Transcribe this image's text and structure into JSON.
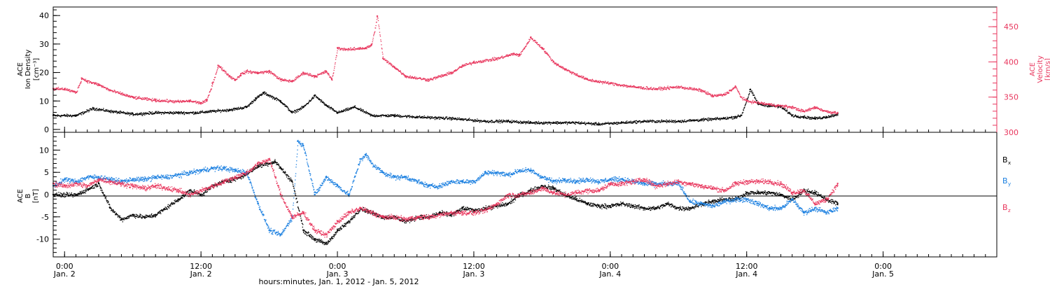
{
  "figure": {
    "xlabel": "hours:minutes, Jan.  1, 2012 - Jan.  5, 2012",
    "x_ticks": [
      {
        "time": "0:00",
        "date": "Jan. 2",
        "hour": 24
      },
      {
        "time": "12:00",
        "date": "Jan. 2",
        "hour": 36
      },
      {
        "time": "0:00",
        "date": "Jan. 3",
        "hour": 48
      },
      {
        "time": "12:00",
        "date": "Jan. 3",
        "hour": 60
      },
      {
        "time": "0:00",
        "date": "Jan. 4",
        "hour": 72
      },
      {
        "time": "12:00",
        "date": "Jan. 4",
        "hour": 84
      },
      {
        "time": "0:00",
        "date": "Jan. 5",
        "hour": 96
      }
    ],
    "xlim_hours": [
      23.0,
      106.0
    ]
  },
  "panel1": {
    "left_label": [
      "ACE",
      "Ion Density",
      "[cm⁻³]"
    ],
    "right_label": [
      "ACE",
      "Velocity",
      "[km/s]"
    ],
    "left_color": "#000000",
    "right_color": "#e8365d",
    "left_ticks": [
      "0",
      "10",
      "20",
      "30",
      "40"
    ],
    "right_ticks": [
      "300",
      "350",
      "400",
      "450"
    ]
  },
  "panel2": {
    "left_label": [
      "ACE",
      "B",
      "[nT]"
    ],
    "left_ticks": [
      "-10",
      "-5",
      "0",
      "5",
      "10"
    ],
    "legend": [
      {
        "label": "B",
        "sub": "x",
        "color": "#000000"
      },
      {
        "label": "B",
        "sub": "y",
        "color": "#1a7fe0"
      },
      {
        "label": "B",
        "sub": "z",
        "color": "#e8365d"
      }
    ]
  },
  "chart_data": [
    {
      "type": "scatter",
      "title": "",
      "xlabel": "",
      "ylabel": "ACE Ion Density [cm⁻³]",
      "y2label": "ACE Velocity [km/s]",
      "xlim": [
        23.0,
        106.0
      ],
      "ylim": [
        -1,
        43
      ],
      "y2lim": [
        300,
        478
      ],
      "series": [
        {
          "name": "Ion Density",
          "axis": "left",
          "color": "#000000",
          "x": [
            23.0,
            25.0,
            26.5,
            28.0,
            30.0,
            32.0,
            34.0,
            35.5,
            37.0,
            38.5,
            40.0,
            40.8,
            41.5,
            43.0,
            44.0,
            45.0,
            46.0,
            47.0,
            48.0,
            49.5,
            51.0,
            53.0,
            55.0,
            58.0,
            61.0,
            63.0,
            65.0,
            67.0,
            69.0,
            71.0,
            73.0,
            75.0,
            78.0,
            80.0,
            82.0,
            83.0,
            83.5,
            84.3,
            85.0,
            86.0,
            87.0,
            88.0,
            89.0,
            90.0,
            91.0,
            92.0
          ],
          "y": [
            5.0,
            5.0,
            7.5,
            6.5,
            5.5,
            6.0,
            6.0,
            6.0,
            6.5,
            7.0,
            8.0,
            11.0,
            13.0,
            10.0,
            6.0,
            8.0,
            12.0,
            8.5,
            6.0,
            8.0,
            5.0,
            5.0,
            4.5,
            4.0,
            3.0,
            3.0,
            2.5,
            2.5,
            2.5,
            2.0,
            2.5,
            3.0,
            3.0,
            3.5,
            4.0,
            4.5,
            5.0,
            14.0,
            9.0,
            8.5,
            8.0,
            5.0,
            4.5,
            4.0,
            4.5,
            5.5
          ]
        },
        {
          "name": "Velocity",
          "axis": "right",
          "color": "#e8365d",
          "x": [
            23.0,
            24.0,
            25.0,
            25.5,
            26.0,
            27.0,
            28.0,
            29.0,
            30.0,
            32.0,
            34.0,
            35.0,
            36.0,
            36.5,
            37.0,
            37.5,
            38.0,
            38.5,
            39.0,
            39.5,
            40.0,
            41.0,
            42.0,
            43.0,
            44.0,
            45.0,
            46.0,
            47.0,
            47.5,
            48.0,
            49.0,
            50.0,
            50.5,
            51.0,
            51.5,
            52.0,
            53.0,
            54.0,
            56.0,
            58.0,
            59.0,
            60.0,
            62.0,
            63.5,
            64.0,
            65.0,
            66.0,
            67.0,
            68.0,
            70.0,
            72.0,
            74.0,
            76.0,
            78.0,
            80.0,
            81.0,
            82.0,
            83.0,
            83.5,
            84.0,
            86.0,
            88.0,
            89.0,
            90.0,
            91.0,
            92.0
          ],
          "y": [
            362.0,
            362.0,
            357.0,
            377.0,
            373.0,
            368.0,
            360.0,
            355.0,
            350.0,
            346.0,
            344.0,
            345.0,
            342.0,
            346.0,
            370.0,
            395.0,
            388.0,
            380.0,
            375.0,
            383.0,
            387.0,
            385.0,
            387.0,
            375.0,
            373.0,
            385.0,
            380.0,
            387.0,
            375.0,
            420.0,
            418.0,
            420.0,
            420.0,
            425.0,
            465.0,
            405.0,
            393.0,
            380.0,
            375.0,
            385.0,
            395.0,
            400.0,
            405.0,
            412.0,
            410.0,
            435.0,
            420.0,
            400.0,
            390.0,
            375.0,
            370.0,
            365.0,
            362.0,
            365.0,
            360.0,
            352.0,
            354.0,
            365.0,
            350.0,
            345.0,
            340.0,
            336.0,
            330.0,
            336.0,
            330.0,
            328.0
          ]
        }
      ]
    },
    {
      "type": "scatter",
      "title": "",
      "xlabel": "hours:minutes, Jan.  1, 2012 - Jan.  5, 2012",
      "ylabel": "ACE B [nT]",
      "xlim": [
        23.0,
        106.0
      ],
      "ylim": [
        -14,
        14
      ],
      "series": [
        {
          "name": "Bx",
          "color": "#000000",
          "x": [
            23.0,
            25.0,
            27.0,
            28.0,
            29.0,
            30.0,
            31.0,
            32.0,
            34.0,
            35.0,
            36.0,
            37.0,
            38.0,
            39.5,
            41.0,
            42.5,
            43.0,
            44.0,
            45.0,
            46.0,
            47.0,
            48.0,
            49.0,
            50.0,
            51.0,
            52.0,
            53.0,
            54.0,
            55.0,
            56.0,
            57.0,
            58.0,
            59.0,
            60.0,
            61.0,
            62.0,
            63.0,
            64.0,
            65.0,
            66.0,
            67.0,
            68.0,
            69.0,
            70.0,
            71.0,
            72.0,
            73.0,
            74.0,
            75.0,
            76.0,
            77.0,
            78.0,
            79.0,
            80.0,
            81.0,
            82.0,
            83.0,
            84.0,
            85.0,
            86.0,
            87.0,
            88.0,
            89.0,
            90.0,
            91.0,
            92.0
          ],
          "y": [
            0.0,
            0.0,
            2.5,
            -3.0,
            -5.5,
            -4.5,
            -5.0,
            -4.5,
            -1.0,
            1.0,
            0.0,
            2.0,
            3.0,
            4.0,
            6.5,
            7.5,
            6.0,
            3.0,
            -8.0,
            -10.0,
            -11.0,
            -8.0,
            -6.0,
            -3.0,
            -4.0,
            -5.0,
            -5.0,
            -6.0,
            -5.0,
            -5.0,
            -4.0,
            -4.5,
            -3.0,
            -3.5,
            -3.0,
            -2.5,
            -2.0,
            0.0,
            1.0,
            2.0,
            1.5,
            0.0,
            -1.0,
            -2.0,
            -2.5,
            -2.5,
            -2.0,
            -2.5,
            -3.0,
            -3.0,
            -2.0,
            -3.0,
            -3.0,
            -2.0,
            -1.5,
            -1.0,
            -1.0,
            0.5,
            0.5,
            0.5,
            0.0,
            -1.0,
            1.0,
            0.5,
            -1.0,
            -2.0
          ]
        },
        {
          "name": "By",
          "color": "#1a7fe0",
          "x": [
            23.0,
            24.0,
            25.0,
            26.0,
            27.0,
            28.0,
            29.0,
            30.0,
            31.0,
            32.0,
            33.0,
            34.0,
            35.0,
            36.0,
            37.0,
            38.0,
            39.0,
            40.0,
            41.0,
            42.0,
            43.0,
            44.0,
            44.5,
            45.0,
            46.0,
            47.0,
            48.0,
            49.0,
            50.0,
            50.5,
            51.0,
            52.0,
            53.0,
            54.0,
            55.0,
            56.0,
            57.0,
            58.0,
            59.0,
            60.0,
            61.0,
            62.0,
            63.0,
            64.0,
            65.0,
            66.0,
            67.0,
            68.0,
            69.0,
            70.0,
            71.0,
            72.0,
            73.0,
            74.0,
            75.0,
            76.0,
            77.0,
            78.0,
            79.0,
            80.0,
            81.0,
            82.0,
            83.0,
            84.0,
            85.0,
            86.0,
            87.0,
            88.0,
            89.0,
            90.0,
            91.0,
            92.0
          ],
          "y": [
            2.0,
            3.5,
            3.0,
            4.0,
            4.0,
            3.5,
            3.0,
            3.5,
            3.5,
            4.0,
            4.0,
            4.5,
            5.0,
            5.5,
            6.0,
            6.0,
            5.5,
            5.0,
            -2.0,
            -8.0,
            -9.0,
            -5.0,
            12.0,
            11.0,
            0.0,
            4.0,
            2.0,
            0.0,
            8.0,
            9.0,
            7.0,
            5.0,
            4.0,
            4.0,
            3.0,
            2.0,
            2.0,
            3.0,
            3.0,
            3.0,
            5.0,
            5.0,
            4.5,
            5.5,
            5.5,
            4.0,
            3.0,
            3.5,
            3.0,
            3.5,
            3.0,
            3.5,
            3.5,
            3.0,
            2.5,
            2.5,
            2.5,
            2.5,
            -1.5,
            -2.0,
            -2.5,
            -1.5,
            -1.0,
            -1.0,
            -2.0,
            -3.0,
            -3.0,
            -1.0,
            -4.0,
            -3.0,
            -4.0,
            -3.0
          ]
        },
        {
          "name": "Bz",
          "color": "#e8365d",
          "x": [
            23.0,
            24.0,
            25.0,
            26.0,
            27.0,
            28.0,
            29.0,
            30.0,
            31.0,
            32.0,
            33.0,
            34.0,
            35.0,
            36.0,
            37.0,
            38.0,
            39.0,
            40.0,
            41.0,
            42.0,
            43.0,
            44.0,
            45.0,
            46.0,
            47.0,
            48.0,
            49.0,
            50.0,
            51.0,
            52.0,
            53.0,
            54.0,
            55.0,
            56.0,
            57.0,
            58.0,
            59.0,
            60.0,
            61.0,
            62.0,
            63.0,
            64.0,
            65.0,
            66.0,
            67.0,
            68.0,
            69.0,
            70.0,
            71.0,
            72.0,
            73.0,
            74.0,
            75.0,
            76.0,
            77.0,
            78.0,
            79.0,
            80.0,
            81.0,
            82.0,
            83.0,
            84.0,
            85.0,
            86.0,
            87.0,
            88.0,
            89.0,
            90.0,
            91.0,
            92.0
          ],
          "y": [
            2.5,
            2.0,
            2.5,
            2.0,
            3.5,
            3.0,
            2.5,
            2.0,
            1.5,
            2.0,
            1.5,
            1.0,
            0.0,
            1.0,
            2.0,
            3.0,
            4.0,
            5.0,
            7.0,
            8.0,
            0.0,
            -5.0,
            -4.0,
            -8.0,
            -9.0,
            -6.0,
            -4.0,
            -3.0,
            -4.0,
            -5.0,
            -5.0,
            -5.5,
            -5.0,
            -5.0,
            -4.5,
            -4.0,
            -4.0,
            -4.0,
            -3.5,
            -2.0,
            0.0,
            0.0,
            0.5,
            1.5,
            0.5,
            0.0,
            0.5,
            1.0,
            1.0,
            2.5,
            2.5,
            3.0,
            3.5,
            2.0,
            2.5,
            3.0,
            2.5,
            2.0,
            1.5,
            1.0,
            2.5,
            3.0,
            3.0,
            3.0,
            2.5,
            0.5,
            1.0,
            -2.0,
            -1.0,
            2.5
          ]
        }
      ]
    }
  ]
}
